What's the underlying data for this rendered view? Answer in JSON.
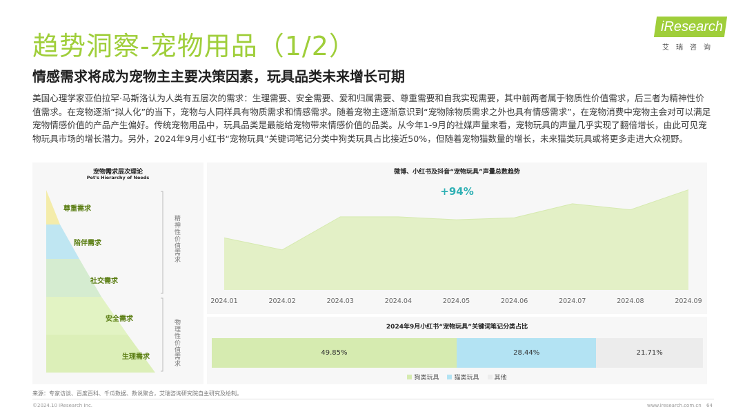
{
  "header": {
    "title": "趋势洞察-宠物用品（1/2）",
    "subtitle": "情感需求将成为宠物主主要决策因素，玩具品类未来增长可期",
    "logo_text": "iResearch",
    "logo_sub": "艾瑞咨询"
  },
  "body_text": "美国心理学家亚伯拉罕·马斯洛认为人类有五层次的需求：生理需要、安全需要、爱和归属需要、尊重需要和自我实现需要，其中前两者属于物质性价值需求，后三者为精神性价值需求。在宠物逐渐“拟人化”的当下，宠物与人同样具有物质需求和情感需求。随着宠物主逐渐意识到“宠物除物质需求之外也具有情感需求”，在宠物消费中宠物主会对可以满足宠物情感价值的产品产生偏好。传统宠物用品中，玩具品类是最能给宠物带来情感价值的品类。从今年1-9月的社媒声量来看，宠物玩具的声量几乎实现了翻倍增长，由此可见宠物玩具市场的增长潜力。另外，2024年9月小红书“宠物玩具”关键词笔记分类中狗类玩具占比接近50%，但随着宠物猫数量的增长，未来猫类玩具或将更多走进大众视野。",
  "pyramid": {
    "title": "宠物需求层次理论",
    "title_en": "Pet's Hierarchy of Needs",
    "levels": [
      {
        "label": "尊重需求",
        "color": "#f4ecaa"
      },
      {
        "label": "陪伴需求",
        "color": "#bfe6f2"
      },
      {
        "label": "社交需求",
        "color": "#d5ecd0"
      },
      {
        "label": "安全需求",
        "color": "#e2f3c3"
      },
      {
        "label": "生理需求",
        "color": "#dcefb8"
      }
    ],
    "group_spiritual": "精神性价值需求",
    "group_material": "物理性价值需求"
  },
  "chart_data": [
    {
      "type": "area",
      "title": "微博、小红书及抖音“宠物玩具”声量总数趋势",
      "annotation": "+94%",
      "x": [
        "2024.01",
        "2024.02",
        "2024.03",
        "2024.04",
        "2024.05",
        "2024.06",
        "2024.07",
        "2024.08",
        "2024.09"
      ],
      "values": [
        52,
        40,
        73,
        73,
        70,
        72,
        86,
        80,
        100
      ],
      "ylim": [
        0,
        110
      ],
      "grid": false,
      "color": "#e3f0c6"
    },
    {
      "type": "bar",
      "orientation": "horizontal-stacked",
      "title": "2024年9月小红书“宠物玩具”关键词笔记分类占比",
      "series": [
        {
          "name": "狗类玩具",
          "value": 49.85,
          "label": "49.85%",
          "color": "#d6ebb0"
        },
        {
          "name": "猫类玩具",
          "value": 28.44,
          "label": "28.44%",
          "color": "#b3e3f3"
        },
        {
          "name": "其他",
          "value": 21.71,
          "label": "21.71%",
          "color": "#ececec"
        }
      ],
      "legend": "bottom"
    }
  ],
  "footer": {
    "source": "来源：专家访谈、百度百科、千瓜数据、数说聚合，艾瑞咨询研究院自主研究及绘制。",
    "copyright": "©2024.10 iResearch Inc.",
    "site": "www.iresearch.com.cn",
    "page": "64"
  }
}
